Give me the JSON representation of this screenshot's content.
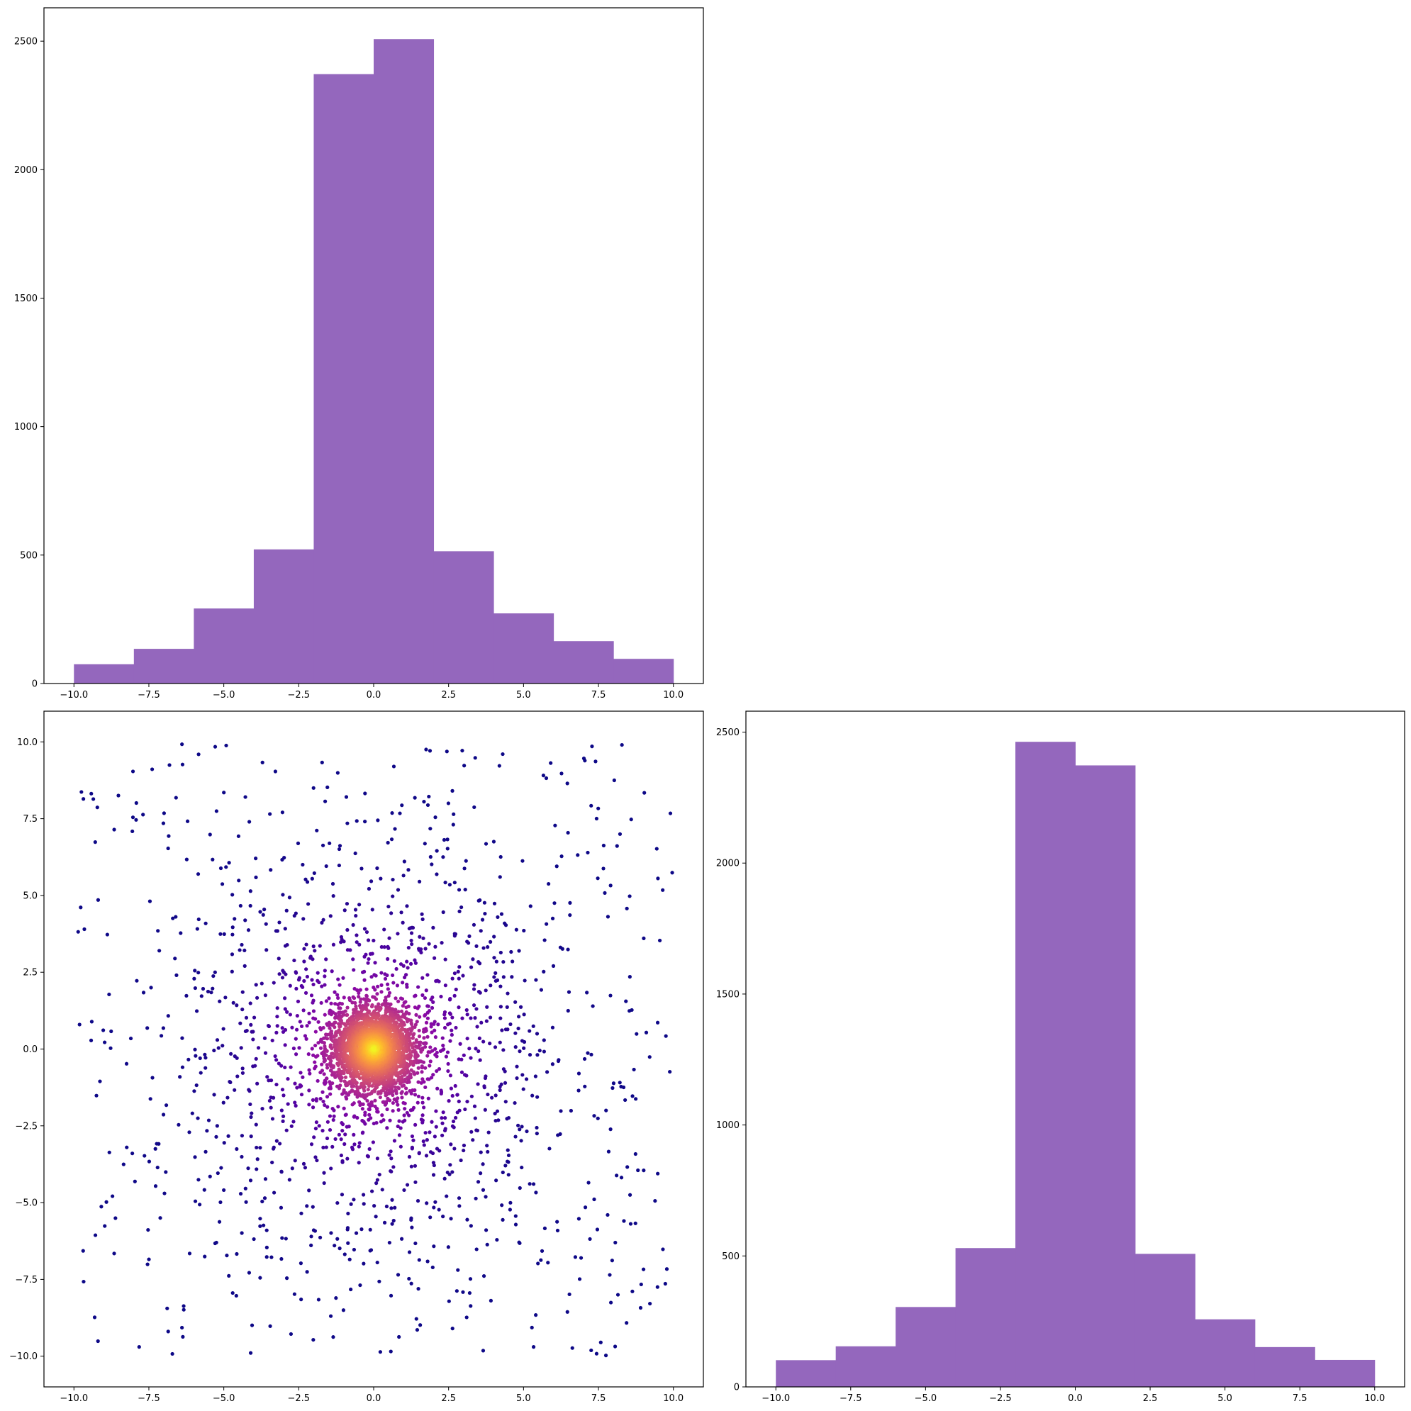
{
  "figure": {
    "background": "#ffffff",
    "hist_color": "#9467bd",
    "colormap": "plasma"
  },
  "chart_data": [
    {
      "id": "top-left",
      "type": "bar",
      "subtype": "histogram",
      "title": "",
      "xlabel": "",
      "ylabel": "",
      "bin_edges": [
        -10,
        -8,
        -6,
        -4,
        -2,
        0,
        2,
        4,
        6,
        8,
        10
      ],
      "values": [
        75,
        135,
        292,
        522,
        2372,
        2508,
        515,
        273,
        165,
        96
      ],
      "xlim": [
        -11,
        11
      ],
      "ylim": [
        0,
        2630
      ],
      "xticks": [
        -10,
        -7.5,
        -5,
        -2.5,
        0,
        2.5,
        5,
        7.5,
        10
      ],
      "xtick_labels": [
        "−10.0",
        "−7.5",
        "−5.0",
        "−2.5",
        "0.0",
        "2.5",
        "5.0",
        "7.5",
        "10.0"
      ],
      "yticks": [
        0,
        500,
        1000,
        1500,
        2000,
        2500
      ],
      "ytick_labels": [
        "0",
        "500",
        "1000",
        "1500",
        "2000",
        "2500"
      ],
      "grid": false,
      "color": "#9467bd"
    },
    {
      "id": "bottom-left",
      "type": "scatter",
      "title": "",
      "xlabel": "",
      "ylabel": "",
      "n_points": 10000,
      "x_range": [
        -10,
        10
      ],
      "y_range": [
        -10,
        10
      ],
      "distribution": "radial density concentrated at origin (0, 0), points spread uniformly to the ±10 edges",
      "color_by": "local point density (low = dark purple, high = yellow)",
      "colormap": "plasma",
      "center": [
        0,
        0
      ],
      "xlim": [
        -11,
        11
      ],
      "ylim": [
        -11,
        11
      ],
      "xticks": [
        -10,
        -7.5,
        -5,
        -2.5,
        0,
        2.5,
        5,
        7.5,
        10
      ],
      "xtick_labels": [
        "−10.0",
        "−7.5",
        "−5.0",
        "−2.5",
        "0.0",
        "2.5",
        "5.0",
        "7.5",
        "10.0"
      ],
      "yticks": [
        -10,
        -7.5,
        -5,
        -2.5,
        0,
        2.5,
        5,
        7.5,
        10
      ],
      "ytick_labels": [
        "−10.0",
        "−7.5",
        "−5.0",
        "−2.5",
        "0.0",
        "2.5",
        "5.0",
        "7.5",
        "10.0"
      ],
      "grid": false
    },
    {
      "id": "bottom-right",
      "type": "bar",
      "subtype": "histogram",
      "title": "",
      "xlabel": "",
      "ylabel": "",
      "bin_edges": [
        -10,
        -8,
        -6,
        -4,
        -2,
        0,
        2,
        4,
        6,
        8,
        10
      ],
      "values": [
        102,
        155,
        305,
        530,
        2463,
        2373,
        508,
        258,
        152,
        103
      ],
      "xlim": [
        -11,
        11
      ],
      "ylim": [
        0,
        2580
      ],
      "xticks": [
        -10,
        -7.5,
        -5,
        -2.5,
        0,
        2.5,
        5,
        7.5,
        10
      ],
      "xtick_labels": [
        "−10.0",
        "−7.5",
        "−5.0",
        "−2.5",
        "0.0",
        "2.5",
        "5.0",
        "7.5",
        "10.0"
      ],
      "yticks": [
        0,
        500,
        1000,
        1500,
        2000,
        2500
      ],
      "ytick_labels": [
        "0",
        "500",
        "1000",
        "1500",
        "2000",
        "2500"
      ],
      "grid": false,
      "color": "#9467bd"
    }
  ]
}
